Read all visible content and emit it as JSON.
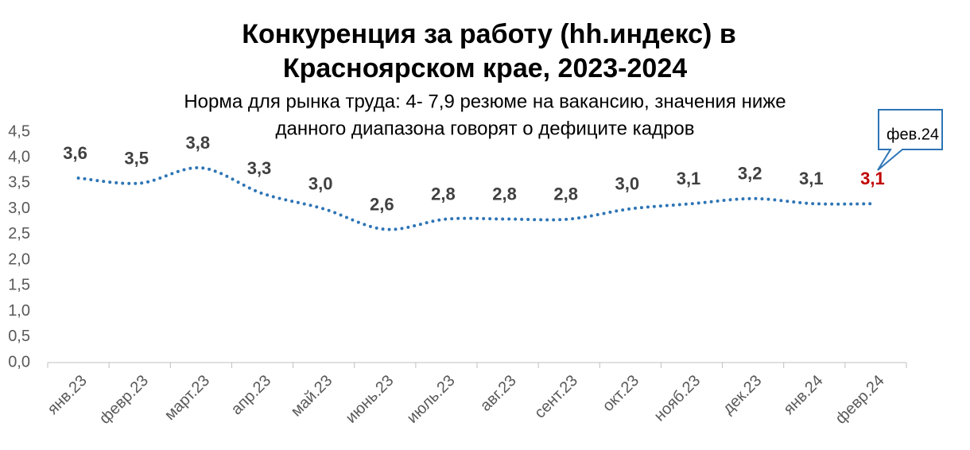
{
  "chart_data": {
    "type": "line",
    "title": [
      "Конкуренция за работу (hh.индекс) в",
      "Красноярском крае, 2023-2024"
    ],
    "subtitle": [
      "Норма для рынка труда: 4- 7,9 резюме на вакансию, значения ниже",
      "данного диапазона говорят о дефиците кадров"
    ],
    "categories": [
      "янв.23",
      "февр.23",
      "март.23",
      "апр.23",
      "май.23",
      "июнь.23",
      "июль.23",
      "авг.23",
      "сент.23",
      "окт.23",
      "нояб.23",
      "дек.23",
      "янв.24",
      "февр.24"
    ],
    "series": [
      {
        "name": "hh.индекс",
        "color": "#2e75b6",
        "values": [
          3.6,
          3.5,
          3.8,
          3.3,
          3.0,
          2.6,
          2.8,
          2.8,
          2.8,
          3.0,
          3.1,
          3.2,
          3.1,
          3.1
        ],
        "value_labels": [
          "3,6",
          "3,5",
          "3,8",
          "3,3",
          "3,0",
          "2,6",
          "2,8",
          "2,8",
          "2,8",
          "3,0",
          "3,1",
          "3,2",
          "3,1",
          "3,1"
        ]
      }
    ],
    "highlight_last_label_color": "#c00000",
    "annotation": "фев.24",
    "ylim": [
      0,
      4.5
    ],
    "yticks": [
      {
        "value": 0,
        "label": "0,0"
      },
      {
        "value": 0.5,
        "label": "0,5"
      },
      {
        "value": 1,
        "label": "1,0"
      },
      {
        "value": 1.5,
        "label": "1,5"
      },
      {
        "value": 2,
        "label": "2,0"
      },
      {
        "value": 2.5,
        "label": "2,5"
      },
      {
        "value": 3,
        "label": "3,0"
      },
      {
        "value": 3.5,
        "label": "3,5"
      },
      {
        "value": 4,
        "label": "4,0"
      },
      {
        "value": 4.5,
        "label": "4,5"
      }
    ],
    "grid": false
  }
}
